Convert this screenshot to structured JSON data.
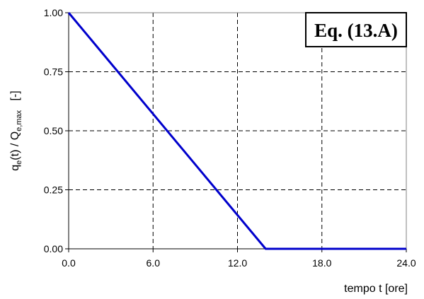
{
  "chart_data": {
    "type": "line",
    "xlabel": "tempo t [ore]",
    "ylabel": {
      "main": "q",
      "sub1": "e",
      "mid": "(t) / Q",
      "sub2": "e,max",
      "unit": "[-]"
    },
    "annotation": "Eq. (13.A)",
    "xlim": [
      0,
      24
    ],
    "ylim": [
      0,
      1
    ],
    "x_ticks": [
      0,
      6,
      12,
      18,
      24
    ],
    "x_tick_labels": [
      "0.0",
      "6.0",
      "12.0",
      "18.0",
      "24.0"
    ],
    "y_ticks": [
      0,
      0.25,
      0.5,
      0.75,
      1
    ],
    "y_tick_labels": [
      "0.00",
      "0.25",
      "0.50",
      "0.75",
      "1.00"
    ],
    "grid": true,
    "series": [
      {
        "color": "#0000cc",
        "points": [
          [
            0,
            1
          ],
          [
            14,
            0
          ],
          [
            24,
            0
          ]
        ]
      }
    ]
  }
}
